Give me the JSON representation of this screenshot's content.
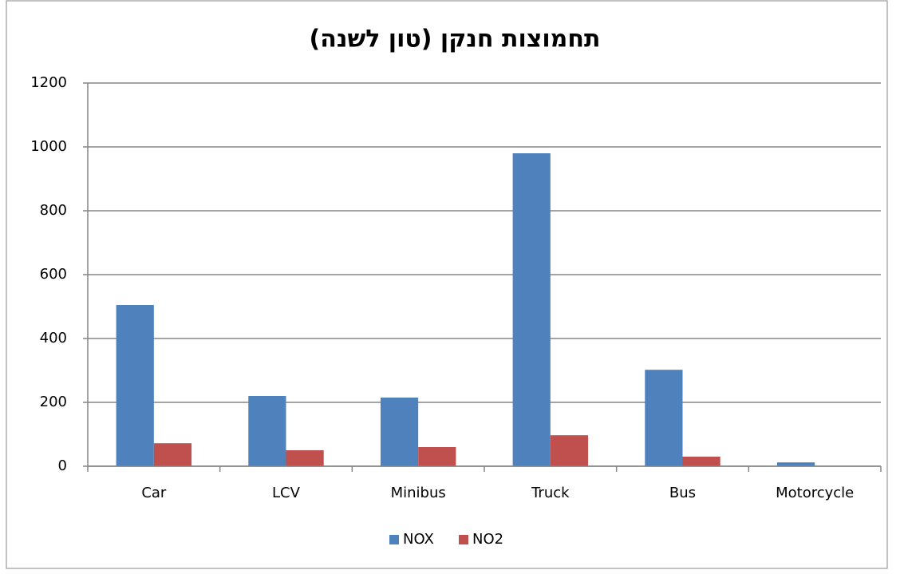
{
  "chart_data": {
    "type": "bar",
    "title": "תחמוצות חנקן (טון לשנה)",
    "categories": [
      "Car",
      "LCV",
      "Minibus",
      "Truck",
      "Bus",
      "Motorcycle"
    ],
    "series": [
      {
        "name": "NOX",
        "color": "#4f81bd",
        "values": [
          505,
          220,
          215,
          980,
          302,
          12
        ]
      },
      {
        "name": "NO2",
        "color": "#c0504d",
        "values": [
          72,
          50,
          60,
          97,
          30,
          1
        ]
      }
    ],
    "ylim": [
      0,
      1200
    ],
    "yticks": [
      0,
      200,
      400,
      600,
      800,
      1000,
      1200
    ],
    "grid": true,
    "legend": "bottom"
  }
}
